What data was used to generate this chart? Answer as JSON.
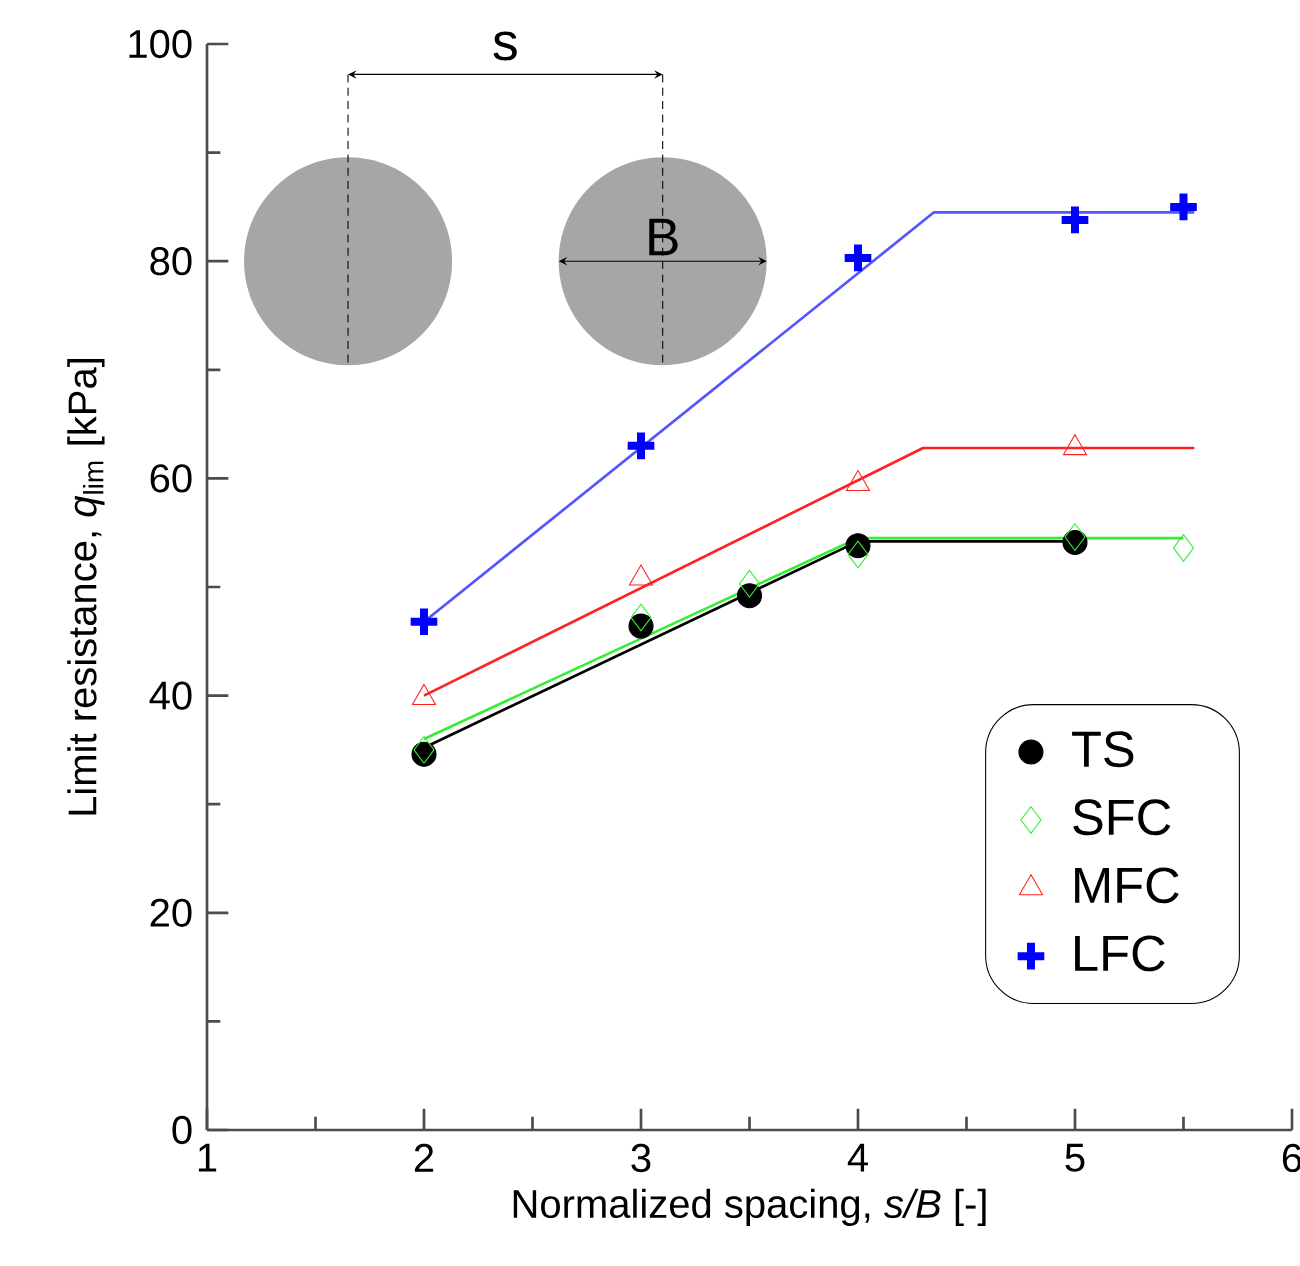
{
  "chart_data": {
    "type": "scatter",
    "xlabel": "Normalized spacing, *s/B* [-]",
    "ylabel": "Limit resistance, *q*$_{lim}$ [kPa]",
    "xlim": [
      1,
      6
    ],
    "ylim": [
      0,
      100
    ],
    "xticks": [
      1,
      2,
      3,
      4,
      5,
      6
    ],
    "yticks": [
      0,
      20,
      40,
      60,
      80,
      100
    ],
    "grid": false,
    "legend": "bottom right",
    "annotations": [
      "s",
      "B"
    ],
    "series": [
      {
        "name": "TS",
        "marker": "circle",
        "color": "#000000",
        "x": [
          2,
          3,
          3.5,
          4,
          5
        ],
        "values": [
          34.6,
          46.4,
          49.2,
          53.8,
          54.1
        ]
      },
      {
        "name": "SFC",
        "marker": "diamond",
        "color": "#33ee33",
        "x": [
          2,
          3,
          3.5,
          4,
          5,
          5.5
        ],
        "values": [
          35,
          47.2,
          50.3,
          53,
          54.6,
          53.6
        ]
      },
      {
        "name": "MFC",
        "marker": "triangle",
        "color": "#ff2222",
        "x": [
          2,
          3,
          4,
          5
        ],
        "values": [
          39.8,
          50.8,
          59.5,
          62.8
        ]
      },
      {
        "name": "LFC",
        "marker": "cross",
        "color": "#0000ff",
        "x": [
          2,
          3,
          4,
          5,
          5.5
        ],
        "values": [
          46.8,
          63,
          80.3,
          83.8,
          85
        ]
      },
      {
        "type": "line",
        "marker": "none",
        "color": "#000000",
        "x": [
          2,
          4,
          5
        ],
        "values": [
          35.2,
          54.2,
          54.2
        ]
      },
      {
        "type": "line",
        "marker": "none",
        "color": "#33ee33",
        "x": [
          2,
          4,
          5.5
        ],
        "values": [
          36,
          54.5,
          54.5
        ]
      },
      {
        "type": "line",
        "marker": "none",
        "color": "#ff2222",
        "x": [
          2,
          4.3,
          5.55
        ],
        "values": [
          40,
          62.8,
          62.8
        ]
      },
      {
        "type": "line",
        "marker": "none",
        "color": "#5555ff",
        "x": [
          2,
          4.35,
          5.55
        ],
        "values": [
          46.8,
          84.5,
          84.5
        ]
      }
    ]
  }
}
